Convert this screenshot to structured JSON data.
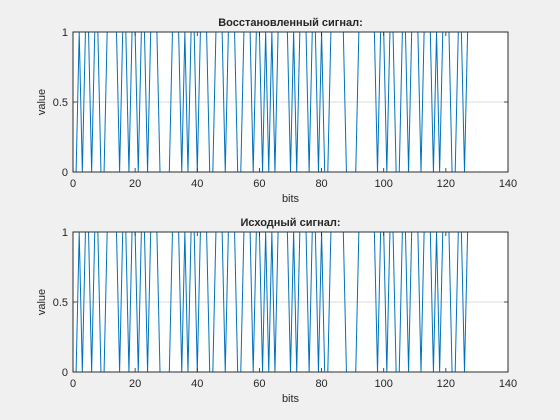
{
  "colors": {
    "figure_bg": "#f0f0f0",
    "series": "#0072bd"
  },
  "chart_data": [
    {
      "type": "line",
      "title": "Восстановленный сигнал:",
      "xlabel": "bits",
      "ylabel": "value",
      "xlim": [
        0,
        140
      ],
      "ylim": [
        0,
        1
      ],
      "xticks": [
        0,
        20,
        40,
        60,
        80,
        100,
        120,
        140
      ],
      "xtick_labels": [
        "0",
        "20",
        "40",
        "60",
        "80",
        "100",
        "120",
        "140"
      ],
      "yticks": [
        0,
        0.5,
        1
      ],
      "ytick_labels": [
        "0",
        "0.5",
        "1"
      ],
      "grid": "horizontal at 0.5",
      "legend": "none",
      "series": [
        {
          "x_start": 1,
          "y": [
            0,
            1,
            0,
            1,
            1,
            0,
            1,
            1,
            0,
            0,
            1,
            1,
            1,
            1,
            0,
            1,
            1,
            0,
            1,
            1,
            0,
            1,
            1,
            0,
            1,
            1,
            1,
            0,
            0,
            0,
            0,
            1,
            1,
            1,
            0,
            1,
            0,
            1,
            1,
            0,
            1,
            1,
            1,
            0,
            0,
            1,
            1,
            1,
            0,
            1,
            1,
            1,
            0,
            0,
            1,
            1,
            1,
            0,
            1,
            1,
            0,
            1,
            0,
            1,
            0,
            1,
            1,
            1,
            1,
            0,
            1,
            0,
            1,
            1,
            1,
            0,
            1,
            1,
            0,
            1,
            0,
            0,
            1,
            1,
            1,
            1,
            1,
            0,
            0,
            0,
            0,
            1,
            1,
            1,
            1,
            1,
            1,
            0,
            1,
            1,
            0,
            1,
            1,
            0,
            0,
            1,
            1,
            0,
            1,
            1,
            1,
            0,
            1,
            1,
            1,
            0,
            1,
            0,
            1,
            1,
            1,
            0,
            0,
            1,
            1,
            0,
            1,
            1
          ]
        }
      ]
    },
    {
      "type": "line",
      "title": "Исходный сигнал:",
      "xlabel": "bits",
      "ylabel": "value",
      "xlim": [
        0,
        140
      ],
      "ylim": [
        0,
        1
      ],
      "xticks": [
        0,
        20,
        40,
        60,
        80,
        100,
        120,
        140
      ],
      "xtick_labels": [
        "0",
        "20",
        "40",
        "60",
        "80",
        "100",
        "120",
        "140"
      ],
      "yticks": [
        0,
        0.5,
        1
      ],
      "ytick_labels": [
        "0",
        "0.5",
        "1"
      ],
      "grid": "horizontal at 0.5",
      "legend": "none",
      "series": [
        {
          "x_start": 1,
          "y": [
            0,
            1,
            0,
            1,
            1,
            0,
            1,
            1,
            0,
            0,
            1,
            1,
            1,
            1,
            0,
            1,
            1,
            0,
            1,
            1,
            0,
            1,
            1,
            0,
            1,
            1,
            1,
            0,
            0,
            0,
            0,
            1,
            1,
            1,
            0,
            1,
            0,
            1,
            1,
            0,
            1,
            1,
            1,
            0,
            0,
            1,
            1,
            1,
            0,
            1,
            1,
            1,
            0,
            0,
            1,
            1,
            1,
            0,
            1,
            1,
            0,
            1,
            0,
            1,
            0,
            1,
            1,
            1,
            1,
            0,
            1,
            0,
            1,
            1,
            1,
            0,
            1,
            1,
            0,
            1,
            0,
            0,
            1,
            1,
            1,
            1,
            1,
            0,
            0,
            0,
            0,
            1,
            1,
            1,
            1,
            1,
            1,
            0,
            1,
            1,
            0,
            1,
            1,
            0,
            0,
            1,
            1,
            0,
            1,
            1,
            1,
            0,
            1,
            1,
            1,
            0,
            1,
            0,
            1,
            1,
            1,
            0,
            0,
            1,
            1,
            0,
            1,
            1
          ]
        }
      ]
    }
  ]
}
